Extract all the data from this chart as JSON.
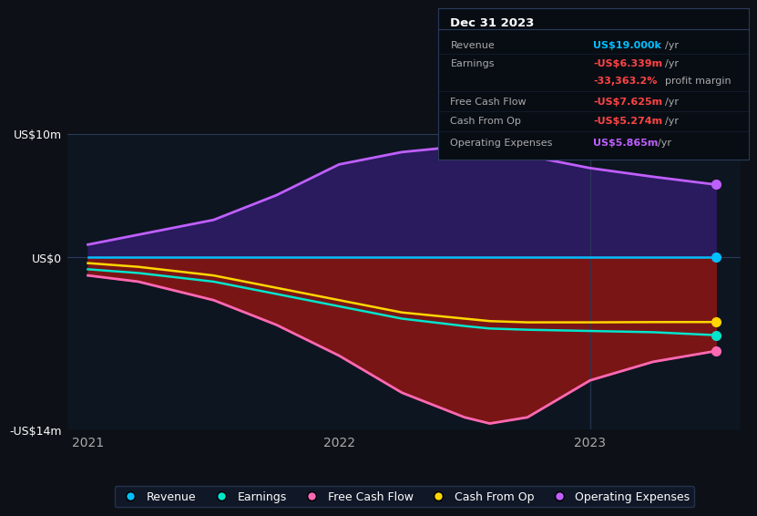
{
  "bg_color": "#0d1117",
  "plot_bg_color": "#0d1520",
  "x_years": [
    2021.0,
    2021.2,
    2021.5,
    2021.75,
    2022.0,
    2022.25,
    2022.5,
    2022.6,
    2022.75,
    2023.0,
    2023.25,
    2023.5
  ],
  "revenue": [
    0.019,
    0.019,
    0.019,
    0.019,
    0.019,
    0.019,
    0.019,
    0.019,
    0.019,
    0.019,
    0.019,
    0.019
  ],
  "earnings": [
    -1.0,
    -1.3,
    -2.0,
    -3.0,
    -4.0,
    -5.0,
    -5.6,
    -5.8,
    -5.9,
    -6.0,
    -6.1,
    -6.339
  ],
  "free_cash_flow": [
    -1.5,
    -2.0,
    -3.5,
    -5.5,
    -8.0,
    -11.0,
    -13.0,
    -13.5,
    -13.0,
    -10.0,
    -8.5,
    -7.625
  ],
  "cash_from_op": [
    -0.5,
    -0.8,
    -1.5,
    -2.5,
    -3.5,
    -4.5,
    -5.0,
    -5.2,
    -5.3,
    -5.3,
    -5.28,
    -5.274
  ],
  "op_expenses": [
    1.0,
    1.8,
    3.0,
    5.0,
    7.5,
    8.5,
    9.0,
    8.8,
    8.2,
    7.2,
    6.5,
    5.865
  ],
  "revenue_color": "#00bfff",
  "earnings_color": "#00e5cc",
  "fcf_color": "#ff69b4",
  "cashop_color": "#ffd700",
  "opex_color": "#bf5fff",
  "opex_fill_color": "#2a1a5e",
  "earnings_fill_color": "#7a1515",
  "ylim_min": -14,
  "ylim_max": 10,
  "ytick_labels": [
    "US$10m",
    "US$0",
    "-US$14m"
  ],
  "ytick_vals": [
    10,
    0,
    -14
  ],
  "xtick_vals": [
    2021,
    2022,
    2023
  ],
  "xtick_labels": [
    "2021",
    "2022",
    "2023"
  ],
  "vline_x": 2023.0,
  "tooltip_title": "Dec 31 2023",
  "tooltip_rows": [
    [
      "Revenue",
      "US$19.000k",
      "#00bfff",
      "/yr"
    ],
    [
      "Earnings",
      "-US$6.339m",
      "#ff4444",
      "/yr"
    ],
    [
      "",
      "-33,363.2%",
      "#ff4444",
      "profit margin"
    ],
    [
      "Free Cash Flow",
      "-US$7.625m",
      "#ff4444",
      "/yr"
    ],
    [
      "Cash From Op",
      "-US$5.274m",
      "#ff4444",
      "/yr"
    ],
    [
      "Operating Expenses",
      "US$5.865m",
      "#bf5fff",
      "/yr"
    ]
  ],
  "legend_items": [
    [
      "Revenue",
      "#00bfff"
    ],
    [
      "Earnings",
      "#00e5cc"
    ],
    [
      "Free Cash Flow",
      "#ff69b4"
    ],
    [
      "Cash From Op",
      "#ffd700"
    ],
    [
      "Operating Expenses",
      "#bf5fff"
    ]
  ],
  "xlim_left": 2020.92,
  "xlim_right": 2023.6
}
